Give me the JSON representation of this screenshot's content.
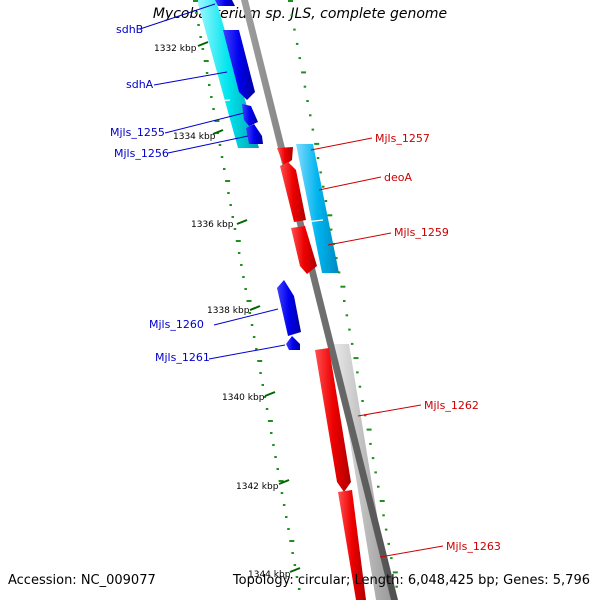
{
  "title": "Mycobacterium sp. JLS, complete genome",
  "footer": {
    "accession": "Accession: NC_009077",
    "topology": "Topology: circular; Length: 6,048,425 bp; Genes: 5,796"
  },
  "colors": {
    "forward_cds": "#0000ee",
    "reverse_cds": "#ee0000",
    "forward_band": "#00e5ee",
    "reverse_band": "#00bfff",
    "gray_band": "#c0c0c0",
    "backbone": "#707070",
    "tick": "#006400",
    "forward_label": "#0000cc",
    "reverse_label": "#cc0000"
  },
  "scale": {
    "unit": "kbp",
    "start_kbp": 1331,
    "end_kbp": 1344,
    "tick_labels": [
      "1332 kbp",
      "1334 kbp",
      "1336 kbp",
      "1338 kbp",
      "1340 kbp",
      "1342 kbp",
      "1344 kbp"
    ]
  },
  "genes": {
    "forward": [
      "sdhB",
      "sdhA",
      "Mjls_1255",
      "Mjls_1256",
      "Mjls_1260",
      "Mjls_1261"
    ],
    "reverse": [
      "Mjls_1257",
      "deoA",
      "Mjls_1259",
      "Mjls_1262",
      "Mjls_1263"
    ]
  }
}
